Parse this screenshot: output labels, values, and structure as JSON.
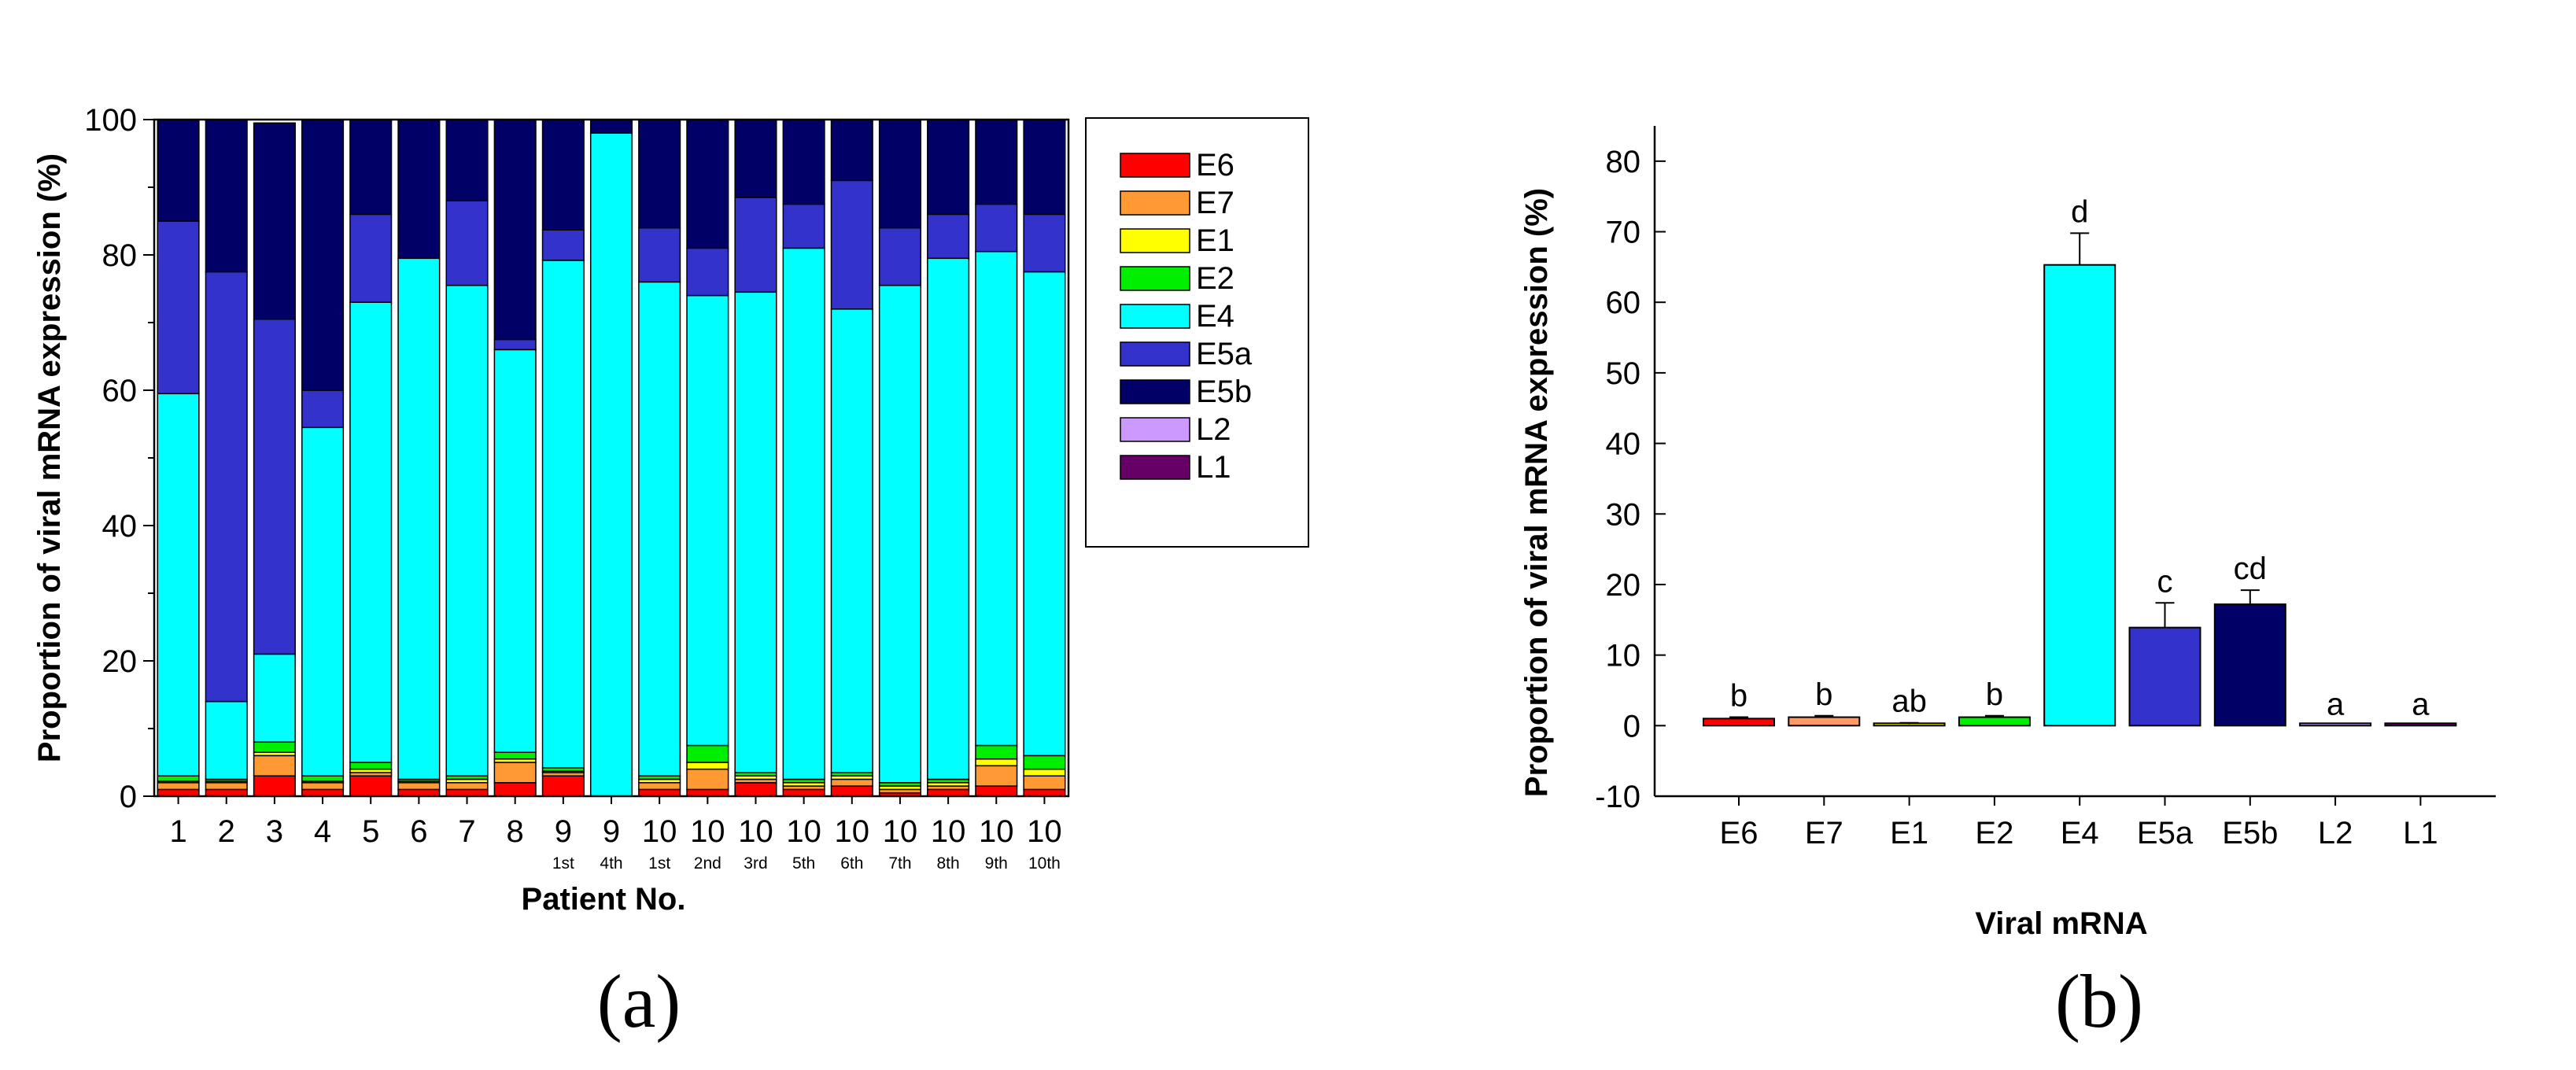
{
  "chart_data": [
    {
      "type": "bar",
      "stacked": true,
      "panel_label": "(a)",
      "xlabel": "Patient No.",
      "ylabel": "Proportion of viral mRNA expression (%)",
      "ylim": [
        0,
        100
      ],
      "yticks": [
        "0",
        "20",
        "40",
        "60",
        "80",
        "100"
      ],
      "yticks_minor": true,
      "categories": [
        {
          "label": "1",
          "sub": ""
        },
        {
          "label": "2",
          "sub": ""
        },
        {
          "label": "3",
          "sub": ""
        },
        {
          "label": "4",
          "sub": ""
        },
        {
          "label": "5",
          "sub": ""
        },
        {
          "label": "6",
          "sub": ""
        },
        {
          "label": "7",
          "sub": ""
        },
        {
          "label": "8",
          "sub": ""
        },
        {
          "label": "9",
          "sub": "1st"
        },
        {
          "label": "9",
          "sub": "4th"
        },
        {
          "label": "10",
          "sub": "1st"
        },
        {
          "label": "10",
          "sub": "2nd"
        },
        {
          "label": "10",
          "sub": "3rd"
        },
        {
          "label": "10",
          "sub": "5th"
        },
        {
          "label": "10",
          "sub": "6th"
        },
        {
          "label": "10",
          "sub": "7th"
        },
        {
          "label": "10",
          "sub": "8th"
        },
        {
          "label": "10",
          "sub": "9th"
        },
        {
          "label": "10",
          "sub": "10th"
        }
      ],
      "legend_position": "right",
      "series": [
        {
          "name": "E6",
          "color": "#ff0000",
          "values": [
            1.0,
            1.0,
            3.0,
            1.0,
            3.0,
            1.0,
            1.0,
            2.0,
            3.0,
            0.0,
            1.0,
            1.0,
            2.0,
            1.0,
            1.5,
            0.5,
            1.0,
            1.5,
            1.0
          ]
        },
        {
          "name": "E7",
          "color": "#ff9933",
          "values": [
            1.0,
            1.0,
            3.0,
            1.0,
            0.5,
            1.0,
            1.0,
            3.0,
            0.5,
            0.0,
            1.0,
            3.0,
            0.5,
            0.5,
            1.0,
            0.5,
            0.5,
            3.0,
            2.0
          ]
        },
        {
          "name": "E1",
          "color": "#ffff00",
          "values": [
            0.2,
            0.2,
            0.5,
            0.2,
            0.5,
            0.2,
            0.5,
            0.5,
            0.2,
            0.0,
            0.5,
            1.0,
            0.5,
            0.5,
            0.5,
            0.5,
            0.5,
            1.0,
            1.0
          ]
        },
        {
          "name": "E2",
          "color": "#00ee00",
          "values": [
            0.8,
            0.3,
            1.5,
            0.8,
            1.0,
            0.3,
            0.5,
            1.0,
            0.5,
            0.0,
            0.5,
            2.5,
            0.5,
            0.5,
            0.5,
            0.5,
            0.5,
            2.0,
            2.0
          ]
        },
        {
          "name": "E4",
          "color": "#00ffff",
          "values": [
            56.5,
            11.5,
            13.0,
            51.5,
            68.0,
            77.0,
            72.5,
            59.5,
            75.0,
            98.0,
            73.0,
            66.5,
            71.0,
            78.5,
            68.5,
            73.5,
            77.0,
            73.0,
            71.5
          ]
        },
        {
          "name": "E5a",
          "color": "#3333cc",
          "values": [
            25.5,
            63.5,
            49.5,
            5.5,
            13.0,
            0.0,
            12.5,
            1.5,
            4.5,
            0.0,
            8.0,
            7.0,
            14.0,
            6.5,
            19.0,
            8.5,
            6.5,
            7.0,
            8.5
          ]
        },
        {
          "name": "E5b",
          "color": "#000066",
          "values": [
            15.0,
            22.5,
            29.0,
            40.0,
            14.0,
            20.5,
            12.0,
            32.5,
            16.3,
            2.0,
            16.0,
            19.0,
            11.5,
            12.5,
            9.0,
            16.0,
            14.0,
            12.5,
            14.0
          ]
        },
        {
          "name": "L2",
          "color": "#cc99ff",
          "values": [
            0.0,
            0.0,
            0.0,
            0.0,
            0.0,
            0.0,
            0.0,
            0.0,
            0.0,
            0.0,
            0.0,
            0.0,
            0.0,
            0.0,
            0.0,
            0.0,
            0.0,
            0.0,
            0.0
          ]
        },
        {
          "name": "L1",
          "color": "#660066",
          "values": [
            0.0,
            0.0,
            0.0,
            0.0,
            0.0,
            0.0,
            0.0,
            0.0,
            0.0,
            0.0,
            0.0,
            0.0,
            0.0,
            0.0,
            0.0,
            0.0,
            0.0,
            0.0,
            0.0
          ]
        }
      ]
    },
    {
      "type": "bar",
      "panel_label": "(b)",
      "xlabel": "Viral mRNA",
      "ylabel": "Proportion of viral mRNA expression (%)",
      "ylim": [
        -10,
        85
      ],
      "yticks": [
        "-10",
        "0",
        "10",
        "20",
        "30",
        "40",
        "50",
        "60",
        "70",
        "80"
      ],
      "categories": [
        "E6",
        "E7",
        "E1",
        "E2",
        "E4",
        "E5a",
        "E5b",
        "L2",
        "L1"
      ],
      "values": [
        1.0,
        1.2,
        0.2,
        1.2,
        65.3,
        13.9,
        17.2,
        0.0,
        0.0
      ],
      "errors": [
        0.2,
        0.2,
        0.2,
        0.2,
        4.5,
        3.5,
        2.0,
        0.0,
        0.0
      ],
      "significance": [
        "b",
        "b",
        "ab",
        "b",
        "d",
        "c",
        "cd",
        "a",
        "a"
      ],
      "colors": [
        "#ff0000",
        "#ff9966",
        "#ffff00",
        "#00ee00",
        "#00ffff",
        "#3333cc",
        "#000066",
        "#cc99ff",
        "#660066"
      ]
    }
  ]
}
